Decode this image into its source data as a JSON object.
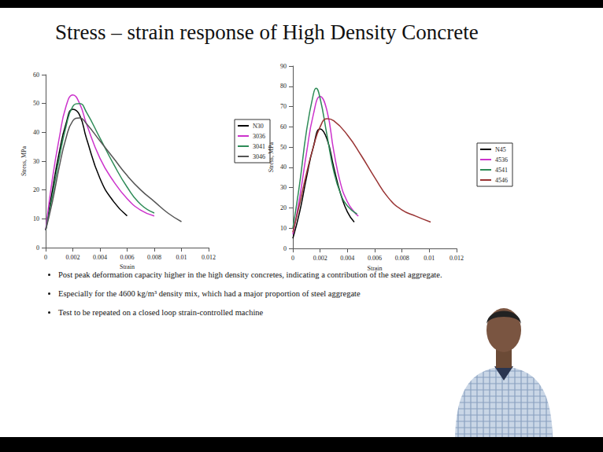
{
  "slide": {
    "title": "Stress – strain response of High Density Concrete",
    "bullets": [
      "Post peak deformation capacity higher in the high density concretes, indicating a contribution of the steel aggregate.",
      "Especially for the 4600 kg/m³ density mix, which had a major proportion of steel aggregate",
      "Test to be repeated on a closed loop strain-controlled machine"
    ]
  },
  "chart_data": [
    {
      "type": "line",
      "xlabel": "Strain",
      "ylabel": "Stress, MPa",
      "xlim": [
        0,
        0.012
      ],
      "xticks": [
        0,
        0.002,
        0.004,
        0.006,
        0.008,
        0.01,
        0.012
      ],
      "ylim": [
        0,
        60
      ],
      "yticks": [
        0,
        10,
        20,
        30,
        40,
        50,
        60
      ],
      "grid": false,
      "legend": "right",
      "series": [
        {
          "name": "N30",
          "color": "#000000",
          "x": [
            0,
            0.0005,
            0.001,
            0.0015,
            0.002,
            0.0025,
            0.003,
            0.004,
            0.005,
            0.006
          ],
          "values": [
            6,
            20,
            33,
            43,
            48,
            46,
            38,
            24,
            16,
            11
          ]
        },
        {
          "name": "3036",
          "color": "#cc33cc",
          "x": [
            0,
            0.0005,
            0.001,
            0.0015,
            0.002,
            0.0025,
            0.003,
            0.004,
            0.005,
            0.006,
            0.007,
            0.008
          ],
          "values": [
            6,
            24,
            38,
            49,
            53,
            50,
            43,
            31,
            23,
            17,
            13,
            11
          ]
        },
        {
          "name": "3041",
          "color": "#2e8b57",
          "x": [
            0,
            0.0005,
            0.001,
            0.0015,
            0.002,
            0.0025,
            0.003,
            0.004,
            0.005,
            0.006,
            0.007,
            0.008
          ],
          "values": [
            6,
            18,
            31,
            42,
            49,
            50,
            47,
            38,
            29,
            21,
            15,
            12
          ]
        },
        {
          "name": "3046",
          "color": "#555555",
          "x": [
            0,
            0.0005,
            0.001,
            0.0015,
            0.002,
            0.0025,
            0.003,
            0.004,
            0.005,
            0.006,
            0.007,
            0.008,
            0.009,
            0.01
          ],
          "values": [
            6,
            16,
            28,
            38,
            44,
            45,
            43,
            37,
            31,
            25,
            20,
            16,
            12,
            9
          ]
        }
      ]
    },
    {
      "type": "line",
      "xlabel": "Strain",
      "ylabel": "Stress, MPa",
      "xlim": [
        0,
        0.012
      ],
      "xticks": [
        0,
        0.002,
        0.004,
        0.006,
        0.008,
        0.01,
        0.012
      ],
      "ylim": [
        0,
        90
      ],
      "yticks": [
        0,
        10,
        20,
        30,
        40,
        50,
        60,
        70,
        80,
        90
      ],
      "grid": false,
      "legend": "right",
      "series": [
        {
          "name": "N45",
          "color": "#000000",
          "x": [
            0,
            0.0005,
            0.001,
            0.0015,
            0.002,
            0.0025,
            0.003,
            0.0035,
            0.004,
            0.0045
          ],
          "values": [
            5,
            18,
            35,
            50,
            59,
            54,
            40,
            27,
            18,
            13
          ]
        },
        {
          "name": "4536",
          "color": "#cc33cc",
          "x": [
            0,
            0.0005,
            0.001,
            0.0015,
            0.002,
            0.0025,
            0.003,
            0.0035,
            0.004,
            0.0045,
            0.0048
          ],
          "values": [
            7,
            25,
            47,
            66,
            75,
            68,
            48,
            32,
            23,
            18,
            16
          ]
        },
        {
          "name": "4541",
          "color": "#2e8b57",
          "x": [
            0,
            0.0005,
            0.001,
            0.0015,
            0.0017,
            0.002,
            0.0025,
            0.003,
            0.0035,
            0.004,
            0.0047
          ],
          "values": [
            10,
            32,
            58,
            76,
            79,
            74,
            56,
            38,
            27,
            21,
            17
          ]
        },
        {
          "name": "4546",
          "color": "#993333",
          "x": [
            0,
            0.0005,
            0.001,
            0.0015,
            0.002,
            0.0025,
            0.003,
            0.004,
            0.005,
            0.006,
            0.007,
            0.008,
            0.009,
            0.0101
          ],
          "values": [
            8,
            22,
            37,
            50,
            60,
            64,
            63,
            56,
            46,
            35,
            25,
            19,
            16,
            13
          ]
        }
      ]
    }
  ]
}
